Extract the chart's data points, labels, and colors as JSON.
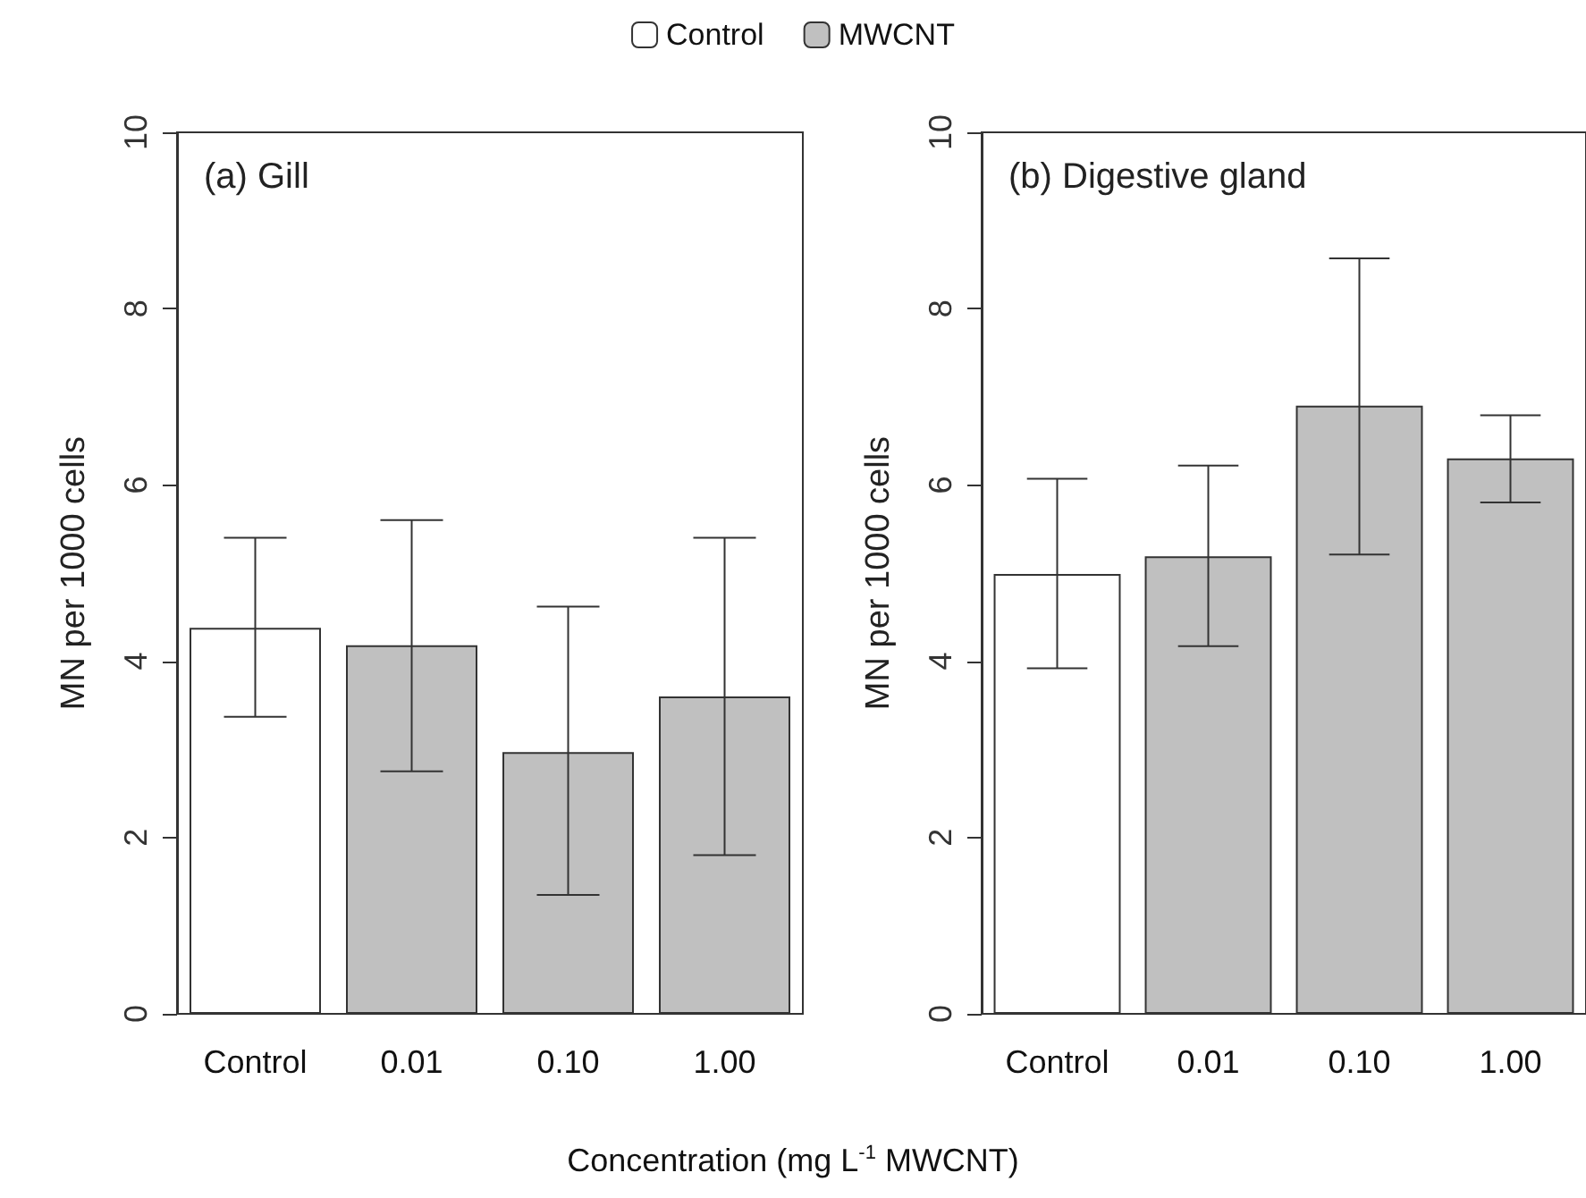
{
  "chart_data": [
    {
      "type": "bar",
      "title": "(a) Gill",
      "ylabel": "MN per 1000 cells",
      "xlabel": "Concentration (mg L$^{-1}$ MWCNT)",
      "legend": "top",
      "categories": [
        "Control",
        "0.01",
        "0.10",
        "1.00"
      ],
      "ylim": [
        0,
        10
      ],
      "yticks": [
        0,
        2,
        4,
        6,
        8,
        10
      ],
      "series": [
        {
          "name": "Control",
          "color": "#ffffff",
          "values": [
            4.38,
            null,
            null,
            null
          ],
          "errors": [
            [
              3.37,
              5.4
            ],
            null,
            null,
            null
          ]
        },
        {
          "name": "MWCNT",
          "color": "#c0c0c0",
          "values": [
            null,
            4.18,
            2.97,
            3.6
          ],
          "errors": [
            null,
            [
              2.75,
              5.6
            ],
            [
              1.35,
              4.62
            ],
            [
              1.8,
              5.4
            ]
          ]
        }
      ]
    },
    {
      "type": "bar",
      "title": "(b) Digestive gland",
      "ylabel": "MN per 1000 cells",
      "categories": [
        "Control",
        "0.01",
        "0.10",
        "1.00"
      ],
      "ylim": [
        0,
        10
      ],
      "yticks": [
        0,
        2,
        4,
        6,
        8,
        10
      ],
      "series": [
        {
          "color": "#ffffff",
          "values": [
            4.99,
            null,
            null,
            null
          ],
          "errors": [
            [
              3.92,
              6.07
            ],
            null,
            null,
            null
          ]
        },
        {
          "color": "#c0c0c0",
          "values": [
            null,
            5.19,
            6.9,
            6.3
          ],
          "errors": [
            null,
            [
              4.17,
              6.22
            ],
            [
              5.21,
              8.57
            ],
            [
              5.8,
              6.79
            ]
          ]
        }
      ]
    }
  ]
}
